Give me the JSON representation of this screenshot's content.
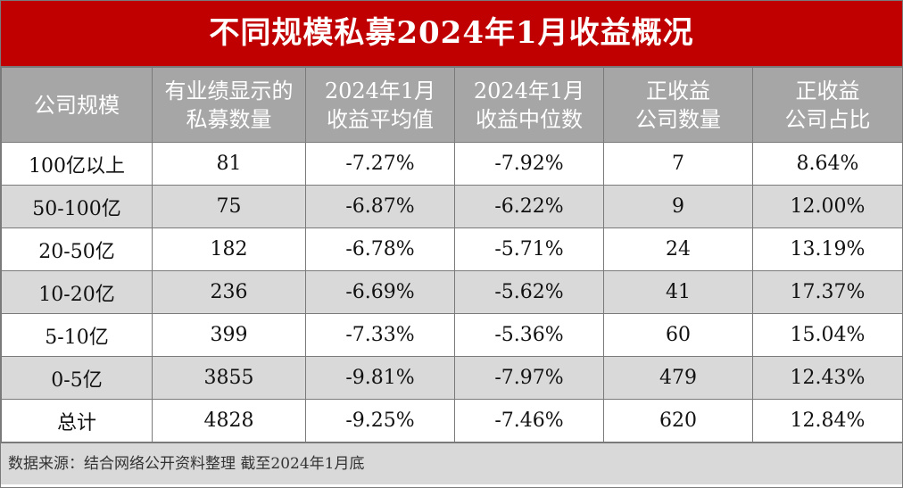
{
  "title": "不同规模私募2024年1月收益概况",
  "headers": [
    [
      "公司规模"
    ],
    [
      "有业绩显示的",
      "私募数量"
    ],
    [
      "2024年1月",
      "收益平均值"
    ],
    [
      "2024年1月",
      "收益中位数"
    ],
    [
      "正收益",
      "公司数量"
    ],
    [
      "正收益",
      "公司占比"
    ]
  ],
  "rows": [
    [
      "100亿以上",
      "81",
      "-7.27%",
      "-7.92%",
      "7",
      "8.64%"
    ],
    [
      "50-100亿",
      "75",
      "-6.87%",
      "-6.22%",
      "9",
      "12.00%"
    ],
    [
      "20-50亿",
      "182",
      "-6.78%",
      "-5.71%",
      "24",
      "13.19%"
    ],
    [
      "10-20亿",
      "236",
      "-6.69%",
      "-5.62%",
      "41",
      "17.37%"
    ],
    [
      "5-10亿",
      "399",
      "-7.33%",
      "-5.36%",
      "60",
      "15.04%"
    ],
    [
      "0-5亿",
      "3855",
      "-9.81%",
      "-7.97%",
      "479",
      "12.43%"
    ],
    [
      "总计",
      "4828",
      "-9.25%",
      "-7.46%",
      "620",
      "12.84%"
    ]
  ],
  "footer": "数据来源：结合网络公开资料整理 截至2024年1月底",
  "colors": {
    "title_bg": "#c00000",
    "header_bg": "#a6a6a6",
    "alt_row_bg": "#d9d9d9"
  }
}
